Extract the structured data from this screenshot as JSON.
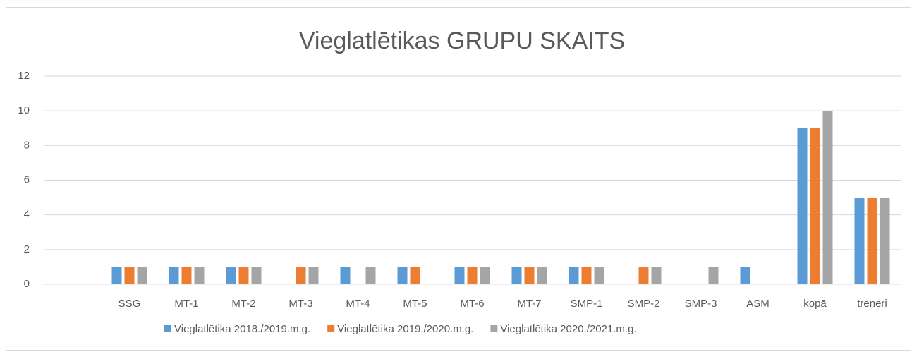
{
  "chart_data": {
    "type": "bar",
    "title": "Vieglatlētikas GRUPU SKAITS",
    "categories": [
      null,
      "SSG",
      "MT-1",
      "MT-2",
      "MT-3",
      "MT-4",
      "MT-5",
      "MT-6",
      "MT-7",
      "SMP-1",
      "SMP-2",
      "SMP-3",
      "ASM",
      "kopā",
      "treneri"
    ],
    "series": [
      {
        "name": "Vieglatlētika 2018./2019.m.g.",
        "color": "#5b9bd5",
        "values": [
          null,
          1,
          1,
          1,
          null,
          1,
          1,
          1,
          1,
          1,
          null,
          null,
          1,
          9,
          5
        ]
      },
      {
        "name": "Vieglatlētika 2019./2020.m.g.",
        "color": "#ed7d31",
        "values": [
          null,
          1,
          1,
          1,
          1,
          null,
          1,
          1,
          1,
          1,
          1,
          null,
          null,
          9,
          5
        ]
      },
      {
        "name": "Vieglatlētika 2020./2021.m.g.",
        "color": "#a5a5a5",
        "values": [
          null,
          1,
          1,
          1,
          1,
          1,
          null,
          1,
          1,
          1,
          1,
          1,
          null,
          10,
          5
        ]
      }
    ],
    "ylim": [
      0,
      12
    ],
    "yticks": [
      0,
      2,
      4,
      6,
      8,
      10,
      12
    ],
    "grid": true,
    "legend": "bottom"
  }
}
